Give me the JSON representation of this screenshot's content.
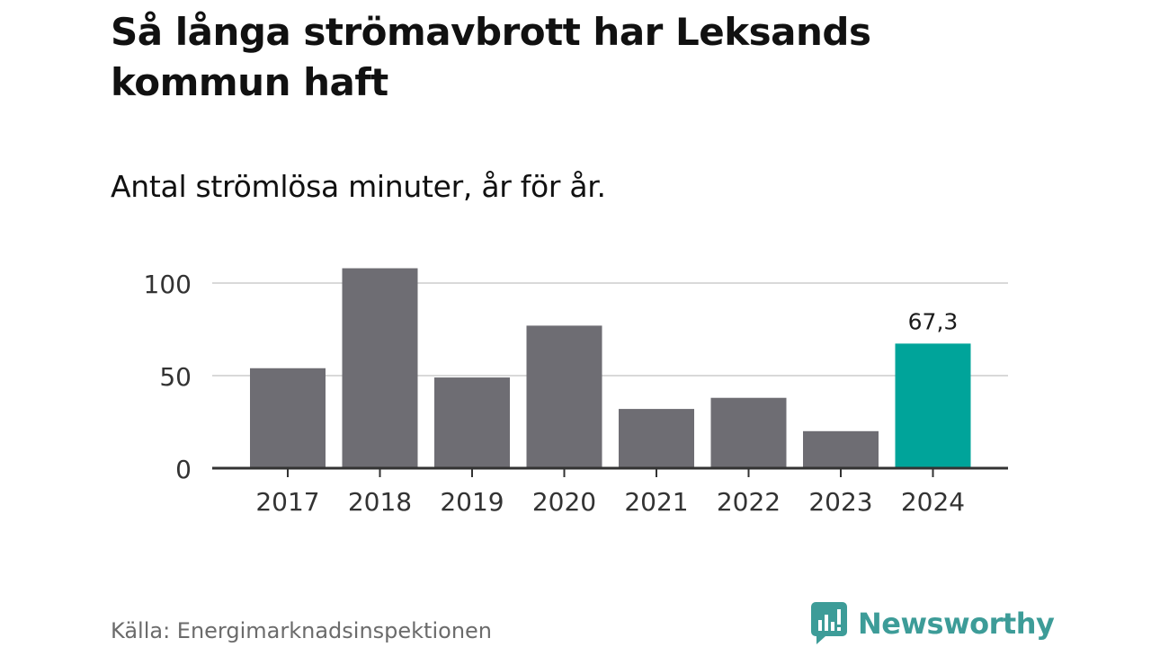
{
  "header": {
    "title": "Så långa strömavbrott har Leksands kommun haft",
    "subtitle": "Antal strömlösa minuter, år för år."
  },
  "footer": {
    "source": "Källa: Energimarknadsinspektionen",
    "brand": "Newsworthy"
  },
  "colors": {
    "bar_default": "#6e6d73",
    "bar_highlight": "#00a49a",
    "gridline": "#d9d9d9",
    "axis": "#333333",
    "brand": "#3d9c98"
  },
  "chart_data": {
    "type": "bar",
    "title": "Så långa strömavbrott har Leksands kommun haft",
    "subtitle": "Antal strömlösa minuter, år för år.",
    "xlabel": "",
    "ylabel": "",
    "categories": [
      "2017",
      "2018",
      "2019",
      "2020",
      "2021",
      "2022",
      "2023",
      "2024"
    ],
    "values": [
      54,
      108,
      49,
      77,
      32,
      38,
      20,
      67.3
    ],
    "highlight_index": 7,
    "data_labels": [
      {
        "index": 7,
        "text": "67,3"
      }
    ],
    "yticks": [
      {
        "value": 0,
        "label": "0"
      },
      {
        "value": 50,
        "label": "50"
      },
      {
        "value": 100,
        "label": "100"
      }
    ],
    "ylim": [
      0,
      110
    ],
    "grid": true,
    "legend": "none"
  }
}
